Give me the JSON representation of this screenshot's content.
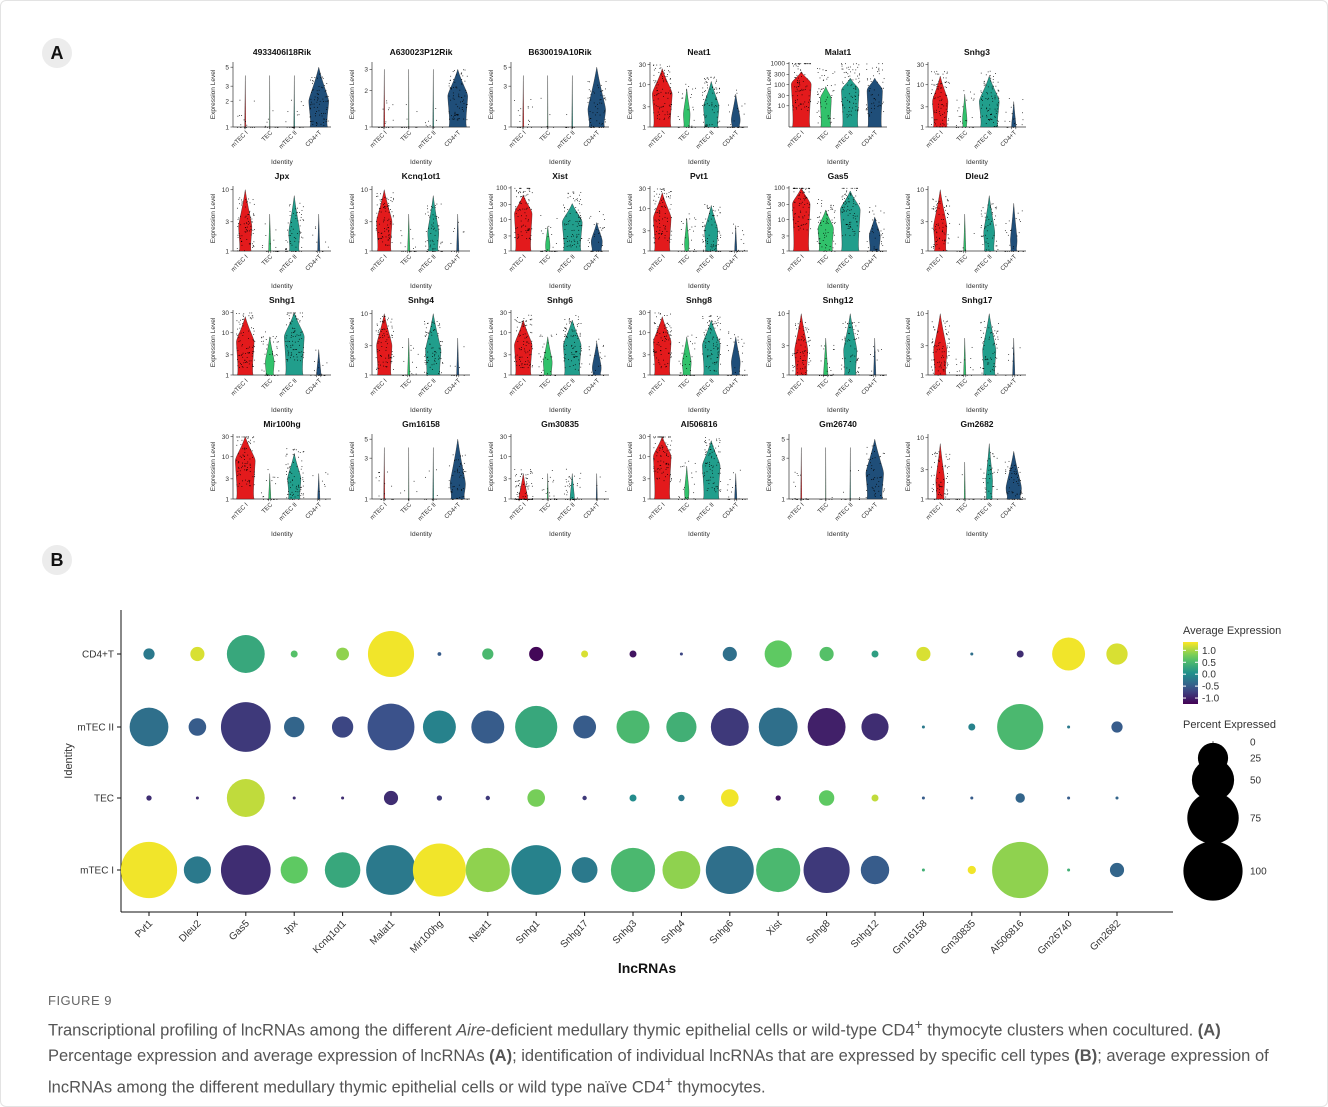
{
  "panel_a_label": "A",
  "panel_b_label": "B",
  "figure_label": "FIGURE 9",
  "caption": {
    "part1": "Transcriptional profiling of lncRNAs among the different ",
    "italic": "Aire",
    "part2": "-deficient medullary thymic epithelial cells or wild-type CD4",
    "sup1": "+",
    "part3": " thymocyte clusters when cocultured. ",
    "boldA1": "(A)",
    "part4": " Percentage expression and average expression of lncRNAs ",
    "boldA2": "(A)",
    "part5": "; identification of individual lncRNAs that are expressed by specific cell types ",
    "boldB": "(B)",
    "part6": "; average expression of lncRNAs among the different medullary thymic epithelial cells or wild type naïve CD4",
    "sup2": "+",
    "part7": " thymocytes."
  },
  "colors": {
    "mTEC I": "#e31a1c",
    "TEC": "#31c26b",
    "mTEC II": "#219e8c",
    "CD4+T": "#1f4e79",
    "scale_low": "#440154",
    "scale_high": "#fde725"
  },
  "chart_data": [
    {
      "type": "violin",
      "panel": "A",
      "ylabel": "Expression Level",
      "xlabel": "Identity",
      "categories": [
        "mTEC I",
        "TEC",
        "mTEC II",
        "CD4+T"
      ],
      "genes": [
        {
          "name": "4933406I18Rik",
          "ymax": 5,
          "ticks": [
            1,
            2,
            3,
            5
          ],
          "widths": [
            0.05,
            0.02,
            0.04,
            0.9
          ],
          "medians": [
            1,
            1,
            1,
            2
          ],
          "dots": [
            0.2,
            0.1,
            0.2,
            0.9
          ]
        },
        {
          "name": "A630023P12Rik",
          "ymax": 3,
          "ticks": [
            1,
            2,
            3
          ],
          "widths": [
            0.05,
            0.02,
            0.04,
            0.9
          ],
          "medians": [
            1,
            1,
            1,
            1.8
          ],
          "dots": [
            0.2,
            0.1,
            0.1,
            0.9
          ]
        },
        {
          "name": "B630019A10Rik",
          "ymax": 5,
          "ticks": [
            1,
            3,
            5
          ],
          "widths": [
            0.05,
            0.02,
            0.04,
            0.8
          ],
          "medians": [
            1,
            1,
            1,
            1.6
          ],
          "dots": [
            0.2,
            0.05,
            0.1,
            0.7
          ]
        },
        {
          "name": "Neat1",
          "ymax": 30,
          "ticks": [
            1,
            3,
            10,
            30
          ],
          "widths": [
            0.9,
            0.3,
            0.7,
            0.4
          ],
          "medians": [
            6,
            2,
            3,
            1.5
          ],
          "dots": [
            1,
            0.3,
            0.9,
            0.3
          ]
        },
        {
          "name": "Malat1",
          "ymax": 1000,
          "ticks": [
            10,
            30,
            100,
            300,
            1000
          ],
          "widths": [
            0.9,
            0.5,
            0.8,
            0.7
          ],
          "medians": [
            100,
            20,
            50,
            50
          ],
          "dots": [
            1,
            0.6,
            0.9,
            0.6
          ]
        },
        {
          "name": "Snhg3",
          "ymax": 30,
          "ticks": [
            1,
            3,
            10,
            30
          ],
          "widths": [
            0.7,
            0.2,
            0.9,
            0.2
          ],
          "medians": [
            4,
            1.5,
            4,
            1
          ],
          "dots": [
            1,
            0.3,
            1,
            0.2
          ]
        },
        {
          "name": "Jpx",
          "ymax": 10,
          "ticks": [
            1,
            3,
            10
          ],
          "widths": [
            0.6,
            0.1,
            0.5,
            0.1
          ],
          "medians": [
            2.5,
            1,
            2,
            1
          ],
          "dots": [
            0.9,
            0.2,
            0.7,
            0.1
          ]
        },
        {
          "name": "Kcnq1ot1",
          "ymax": 10,
          "ticks": [
            1,
            3,
            10
          ],
          "widths": [
            0.7,
            0.1,
            0.5,
            0.1
          ],
          "medians": [
            3,
            1,
            2,
            1
          ],
          "dots": [
            1,
            0.2,
            0.7,
            0.1
          ]
        },
        {
          "name": "Xist",
          "ymax": 100,
          "ticks": [
            1,
            3,
            10,
            30,
            100
          ],
          "widths": [
            0.8,
            0.2,
            0.9,
            0.5
          ],
          "medians": [
            15,
            1.5,
            8,
            2
          ],
          "dots": [
            1,
            0.3,
            1,
            0.4
          ]
        },
        {
          "name": "Pvt1",
          "ymax": 30,
          "ticks": [
            1,
            3,
            10,
            30
          ],
          "widths": [
            0.8,
            0.2,
            0.6,
            0.1
          ],
          "medians": [
            6,
            1.5,
            3,
            1
          ],
          "dots": [
            1,
            0.3,
            0.9,
            0.2
          ]
        },
        {
          "name": "Gas5",
          "ymax": 100,
          "ticks": [
            1,
            3,
            10,
            30,
            100
          ],
          "widths": [
            0.8,
            0.7,
            0.9,
            0.5
          ],
          "medians": [
            30,
            5,
            20,
            3
          ],
          "dots": [
            1,
            0.8,
            1,
            0.5
          ]
        },
        {
          "name": "Dleu2",
          "ymax": 10,
          "ticks": [
            1,
            3,
            10
          ],
          "widths": [
            0.6,
            0.1,
            0.5,
            0.3
          ],
          "medians": [
            2.5,
            1,
            2,
            1.5
          ],
          "dots": [
            0.9,
            0.1,
            0.6,
            0.3
          ]
        },
        {
          "name": "Snhg1",
          "ymax": 30,
          "ticks": [
            1,
            3,
            10,
            30
          ],
          "widths": [
            0.8,
            0.4,
            0.9,
            0.2
          ],
          "medians": [
            6,
            2,
            8,
            1
          ],
          "dots": [
            1,
            0.5,
            1,
            0.2
          ]
        },
        {
          "name": "Snhg4",
          "ymax": 10,
          "ticks": [
            1,
            3,
            10
          ],
          "widths": [
            0.7,
            0.1,
            0.7,
            0.1
          ],
          "medians": [
            3,
            1,
            2.5,
            1
          ],
          "dots": [
            1,
            0.2,
            0.9,
            0.1
          ]
        },
        {
          "name": "Snhg6",
          "ymax": 30,
          "ticks": [
            1,
            3,
            10,
            30
          ],
          "widths": [
            0.8,
            0.4,
            0.8,
            0.4
          ],
          "medians": [
            5,
            2,
            5,
            1.5
          ],
          "dots": [
            1,
            0.4,
            1,
            0.3
          ]
        },
        {
          "name": "Snhg8",
          "ymax": 30,
          "ticks": [
            1,
            3,
            10,
            30
          ],
          "widths": [
            0.8,
            0.4,
            0.8,
            0.4
          ],
          "medians": [
            6,
            2,
            5,
            2
          ],
          "dots": [
            1,
            0.4,
            1,
            0.3
          ]
        },
        {
          "name": "Snhg12",
          "ymax": 10,
          "ticks": [
            1,
            3,
            10
          ],
          "widths": [
            0.6,
            0.2,
            0.6,
            0.1
          ],
          "medians": [
            2.5,
            1,
            2.5,
            1
          ],
          "dots": [
            0.9,
            0.3,
            0.7,
            0.2
          ]
        },
        {
          "name": "Snhg17",
          "ymax": 10,
          "ticks": [
            1,
            3,
            10
          ],
          "widths": [
            0.6,
            0.1,
            0.6,
            0.1
          ],
          "medians": [
            2.5,
            1,
            2.5,
            1
          ],
          "dots": [
            0.9,
            0.2,
            0.7,
            0.1
          ]
        },
        {
          "name": "Mir100hg",
          "ymax": 30,
          "ticks": [
            1,
            3,
            10,
            30
          ],
          "widths": [
            0.9,
            0.1,
            0.6,
            0.1
          ],
          "medians": [
            8,
            1,
            3,
            1
          ],
          "dots": [
            1,
            0.2,
            0.9,
            0.1
          ]
        },
        {
          "name": "Gm16158",
          "ymax": 5,
          "ticks": [
            1,
            3,
            5
          ],
          "widths": [
            0.05,
            0.02,
            0.04,
            0.7
          ],
          "medians": [
            1,
            1,
            1,
            1.5
          ],
          "dots": [
            0.2,
            0.05,
            0.1,
            0.6
          ]
        },
        {
          "name": "Gm30835",
          "ymax": 30,
          "ticks": [
            1,
            3,
            10,
            30
          ],
          "widths": [
            0.4,
            0.05,
            0.2,
            0.05
          ],
          "medians": [
            1,
            1,
            1,
            1
          ],
          "dots": [
            1,
            0.3,
            0.5,
            0.05
          ]
        },
        {
          "name": "AI506816",
          "ymax": 30,
          "ticks": [
            1,
            3,
            10,
            30
          ],
          "widths": [
            0.8,
            0.2,
            0.8,
            0.1
          ],
          "medians": [
            10,
            1.5,
            6,
            1
          ],
          "dots": [
            1,
            0.3,
            0.9,
            0.2
          ]
        },
        {
          "name": "Gm26740",
          "ymax": 5,
          "ticks": [
            1,
            3,
            5
          ],
          "widths": [
            0.05,
            0.02,
            0.03,
            0.8
          ],
          "medians": [
            1,
            1,
            1,
            2
          ],
          "dots": [
            0.2,
            0.05,
            0.1,
            0.6
          ]
        },
        {
          "name": "Gm2682",
          "ymax": 10,
          "ticks": [
            1,
            3,
            10
          ],
          "widths": [
            0.4,
            0.05,
            0.3,
            0.7
          ],
          "medians": [
            2,
            1,
            2,
            1.5
          ],
          "dots": [
            0.8,
            0.1,
            0.5,
            0.7
          ]
        }
      ]
    },
    {
      "type": "dot",
      "panel": "B",
      "xlabel": "lncRNAs",
      "ylabel": "Identity",
      "rows": [
        "CD4+T",
        "mTEC II",
        "TEC",
        "mTEC I"
      ],
      "genes": [
        "Pvt1",
        "Dleu2",
        "Gas5",
        "Jpx",
        "Kcnq1ot1",
        "Malat1",
        "Mir100hg",
        "Neat1",
        "Snhg1",
        "Snhg17",
        "Snhg3",
        "Snhg4",
        "Snhg6",
        "Xist",
        "Snhg8",
        "Snhg12",
        "Gm16158",
        "Gm30835",
        "AI506816",
        "Gm26740",
        "Gm2682"
      ],
      "percent": [
        [
          3,
          5,
          40,
          1,
          4,
          60,
          0.2,
          3,
          5,
          1,
          1,
          0.1,
          5,
          20,
          5,
          1,
          5,
          0.1,
          1,
          30,
          12
        ],
        [
          42,
          8,
          70,
          11,
          12,
          62,
          30,
          30,
          50,
          14,
          30,
          25,
          40,
          42,
          40,
          20,
          0.1,
          1,
          60,
          0.1,
          3
        ],
        [
          0.5,
          0.1,
          40,
          0.1,
          0.1,
          5,
          0.5,
          0.3,
          8,
          0.3,
          1,
          0.8,
          8,
          0.5,
          6,
          1,
          0.1,
          0.1,
          2,
          0.1,
          0.1
        ],
        [
          90,
          20,
          70,
          20,
          35,
          70,
          80,
          55,
          70,
          18,
          55,
          40,
          65,
          55,
          60,
          22,
          0.1,
          1.5,
          90,
          0.1,
          5
        ]
      ],
      "avg_expr": [
        [
          -0.2,
          1.2,
          0.3,
          0.6,
          0.9,
          1.3,
          -0.5,
          0.5,
          -1.2,
          1.2,
          -1.1,
          -0.7,
          -0.3,
          0.7,
          0.6,
          0.2,
          1.2,
          -0.3,
          -0.9,
          1.3,
          1.2
        ],
        [
          -0.3,
          -0.5,
          -0.8,
          -0.4,
          -0.7,
          -0.6,
          -0.1,
          -0.5,
          0.3,
          -0.5,
          0.5,
          0.4,
          -0.8,
          -0.3,
          -1.0,
          -0.9,
          -0.2,
          -0.1,
          0.5,
          -0.2,
          -0.5
        ],
        [
          -0.9,
          -0.9,
          1.1,
          -0.9,
          -0.9,
          -0.9,
          -0.8,
          -0.8,
          0.8,
          -0.8,
          0.0,
          -0.2,
          1.3,
          -1.1,
          0.7,
          1.1,
          -0.5,
          -0.5,
          -0.4,
          -0.5,
          -0.4
        ],
        [
          1.3,
          -0.2,
          -0.9,
          0.7,
          0.3,
          -0.2,
          1.3,
          0.9,
          -0.1,
          -0.2,
          0.5,
          0.9,
          -0.3,
          0.5,
          -0.8,
          -0.5,
          0.4,
          1.3,
          0.9,
          0.4,
          -0.4
        ]
      ],
      "legend": {
        "color_title": "Average Expression",
        "color_ticks": [
          "1.0",
          "0.5",
          "0.0",
          "-0.5",
          "-1.0"
        ],
        "color_values": [
          1.0,
          0.5,
          0.0,
          -0.5,
          -1.0
        ],
        "color_range": [
          -1.25,
          1.35
        ],
        "size_title": "Percent Expressed",
        "size_ticks": [
          "0",
          "25",
          "50",
          "75",
          "100"
        ],
        "size_values": [
          0,
          25,
          50,
          75,
          100
        ]
      }
    }
  ]
}
